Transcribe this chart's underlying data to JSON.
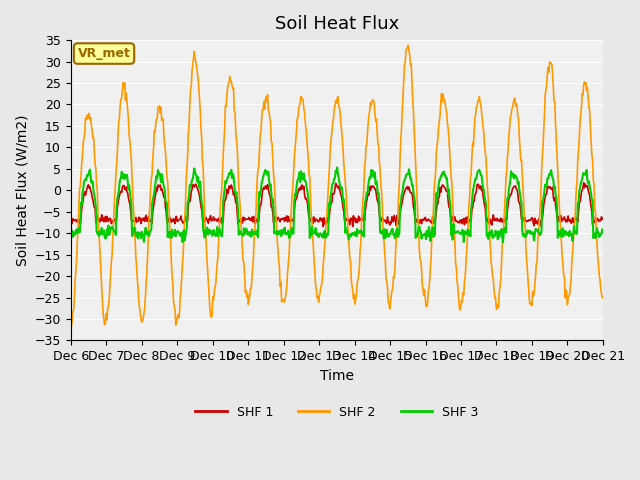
{
  "title": "Soil Heat Flux",
  "xlabel": "Time",
  "ylabel": "Soil Heat Flux (W/m2)",
  "ylim": [
    -35,
    35
  ],
  "yticks": [
    -35,
    -30,
    -25,
    -20,
    -15,
    -10,
    -5,
    0,
    5,
    10,
    15,
    20,
    25,
    30,
    35
  ],
  "xtick_labels": [
    "Dec 6",
    "Dec 7",
    "Dec 8",
    "Dec 9",
    "Dec 10",
    "Dec 11",
    "Dec 12",
    "Dec 13",
    "Dec 14",
    "Dec 15",
    "Dec 16",
    "Dec 17",
    "Dec 18",
    "Dec 19",
    "Dec 20",
    "Dec 21"
  ],
  "legend_labels": [
    "SHF 1",
    "SHF 2",
    "SHF 3"
  ],
  "colors": {
    "SHF1": "#cc0000",
    "SHF2": "#ff9900",
    "SHF3": "#00cc00"
  },
  "line_widths": {
    "SHF1": 1.2,
    "SHF2": 1.2,
    "SHF3": 1.5
  },
  "annotation_text": "VR_met",
  "annotation_box_color": "#ffff99",
  "annotation_border_color": "#996600",
  "background_color": "#e8e8e8",
  "plot_bg_color": "#f0f0f0",
  "n_days": 15,
  "pts_per_day": 48,
  "title_fontsize": 13,
  "axis_label_fontsize": 10,
  "tick_fontsize": 9,
  "peak_vals": [
    18,
    24,
    19,
    31,
    26,
    22,
    21,
    21,
    21,
    34,
    22,
    21,
    21,
    30,
    25
  ],
  "trough_vals": [
    -32,
    -29,
    -31,
    -30,
    -25,
    -26,
    -26,
    -24,
    -26,
    -26,
    -27,
    -26,
    -28,
    -25,
    -25
  ]
}
